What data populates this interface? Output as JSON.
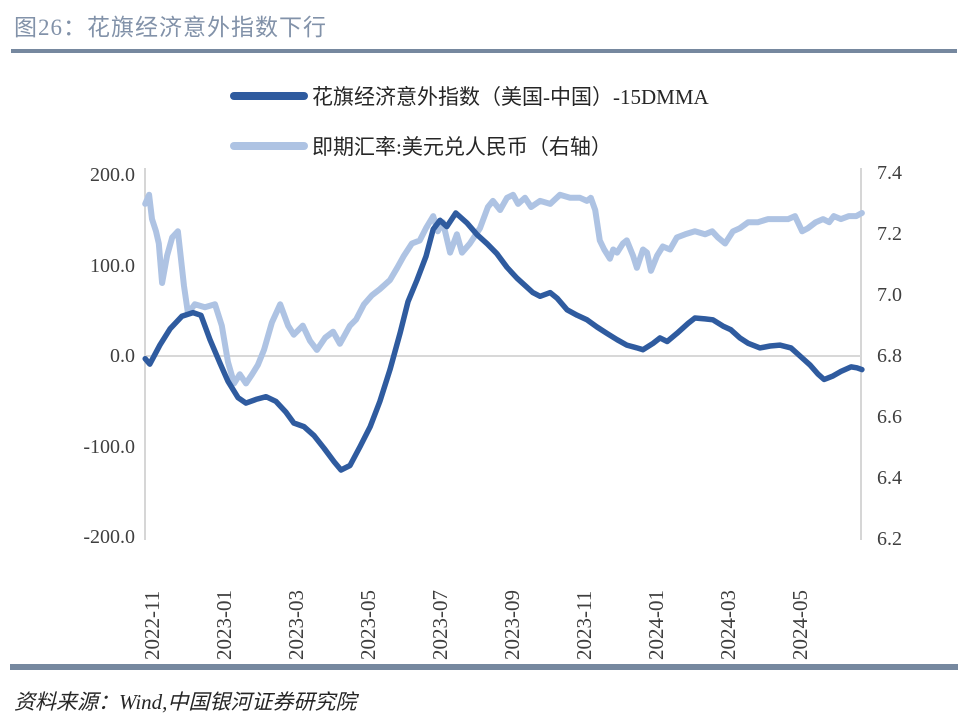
{
  "figure": {
    "title": "图26：花旗经济意外指数下行",
    "source": "资料来源：Wind,中国银河证券研究院"
  },
  "colors": {
    "title_text": "#8292A9",
    "rule": "#76889F",
    "axis_text": "#3F3F3F",
    "axis_line": "#C9C9C9",
    "zero_gridline": "#D8D8D8",
    "series_dark": "#2F5B9F",
    "series_light": "#AEC3E3"
  },
  "chart_data": {
    "type": "line",
    "title": "图26：花旗经济意外指数下行",
    "x_unit": "months since 2022-11",
    "grid": "zero-line-only",
    "legend_position": "top-center",
    "left_axis": {
      "range": [
        -200,
        200
      ],
      "ticks": [
        {
          "label": "200.0",
          "v": 200
        },
        {
          "label": "100.0",
          "v": 100
        },
        {
          "label": "0.0",
          "v": 0
        },
        {
          "label": "-100.0",
          "v": -100
        },
        {
          "label": "-200.0",
          "v": -200
        }
      ]
    },
    "right_axis": {
      "range": [
        6.2,
        7.4
      ],
      "ticks": [
        {
          "label": "7.4",
          "v": 7.4
        },
        {
          "label": "7.2",
          "v": 7.2
        },
        {
          "label": "7.0",
          "v": 7.0
        },
        {
          "label": "6.8",
          "v": 6.8
        },
        {
          "label": "6.6",
          "v": 6.6
        },
        {
          "label": "6.4",
          "v": 6.4
        },
        {
          "label": "6.2",
          "v": 6.2
        }
      ]
    },
    "x_axis": {
      "ticks": [
        {
          "label": "2022-11",
          "t": 0
        },
        {
          "label": "2023-01",
          "t": 2
        },
        {
          "label": "2023-03",
          "t": 4
        },
        {
          "label": "2023-05",
          "t": 6
        },
        {
          "label": "2023-07",
          "t": 8
        },
        {
          "label": "2023-09",
          "t": 10
        },
        {
          "label": "2023-11",
          "t": 12
        },
        {
          "label": "2024-01",
          "t": 14
        },
        {
          "label": "2024-03",
          "t": 16
        },
        {
          "label": "2024-05",
          "t": 18
        }
      ]
    },
    "series": [
      {
        "name": "花旗经济意外指数（美国-中国）-15DMMA",
        "axis": "left",
        "color": "#2F5B9F",
        "points": [
          [
            -0.19,
            -3
          ],
          [
            -0.06,
            -9
          ],
          [
            0.22,
            12
          ],
          [
            0.5,
            30
          ],
          [
            0.83,
            44
          ],
          [
            1.14,
            48
          ],
          [
            1.36,
            45
          ],
          [
            1.61,
            18
          ],
          [
            1.89,
            -8
          ],
          [
            2.11,
            -28
          ],
          [
            2.39,
            -46
          ],
          [
            2.61,
            -52
          ],
          [
            2.89,
            -48
          ],
          [
            3.17,
            -45
          ],
          [
            3.44,
            -50
          ],
          [
            3.72,
            -62
          ],
          [
            3.94,
            -74
          ],
          [
            4.22,
            -78
          ],
          [
            4.5,
            -88
          ],
          [
            4.78,
            -102
          ],
          [
            5.06,
            -117
          ],
          [
            5.25,
            -126
          ],
          [
            5.5,
            -121
          ],
          [
            5.78,
            -100
          ],
          [
            6.06,
            -78
          ],
          [
            6.33,
            -50
          ],
          [
            6.61,
            -15
          ],
          [
            6.89,
            25
          ],
          [
            7.11,
            60
          ],
          [
            7.36,
            84
          ],
          [
            7.61,
            110
          ],
          [
            7.81,
            140
          ],
          [
            8.0,
            150
          ],
          [
            8.19,
            143
          ],
          [
            8.44,
            158
          ],
          [
            8.75,
            147
          ],
          [
            9.03,
            134
          ],
          [
            9.31,
            124
          ],
          [
            9.58,
            113
          ],
          [
            9.86,
            98
          ],
          [
            10.14,
            86
          ],
          [
            10.36,
            78
          ],
          [
            10.58,
            70
          ],
          [
            10.78,
            66
          ],
          [
            11.06,
            70
          ],
          [
            11.25,
            64
          ],
          [
            11.53,
            51
          ],
          [
            11.81,
            45
          ],
          [
            12.08,
            40
          ],
          [
            12.36,
            32
          ],
          [
            12.64,
            25
          ],
          [
            12.92,
            18
          ],
          [
            13.19,
            12
          ],
          [
            13.47,
            9
          ],
          [
            13.64,
            7
          ],
          [
            13.92,
            14
          ],
          [
            14.11,
            20
          ],
          [
            14.31,
            16
          ],
          [
            14.58,
            25
          ],
          [
            14.89,
            36
          ],
          [
            15.08,
            42
          ],
          [
            15.36,
            41
          ],
          [
            15.58,
            40
          ],
          [
            15.86,
            33
          ],
          [
            16.08,
            29
          ],
          [
            16.33,
            20
          ],
          [
            16.56,
            14
          ],
          [
            16.89,
            9
          ],
          [
            17.17,
            11
          ],
          [
            17.44,
            12
          ],
          [
            17.75,
            9
          ],
          [
            18.0,
            0
          ],
          [
            18.28,
            -10
          ],
          [
            18.5,
            -20
          ],
          [
            18.67,
            -26
          ],
          [
            18.92,
            -22
          ],
          [
            19.14,
            -17
          ],
          [
            19.42,
            -12
          ],
          [
            19.58,
            -13
          ],
          [
            19.72,
            -15
          ]
        ]
      },
      {
        "name": "即期汇率:美元兑人民币（右轴）",
        "axis": "right",
        "color": "#AEC3E3",
        "points": [
          [
            -0.19,
            7.3
          ],
          [
            -0.08,
            7.33
          ],
          [
            0,
            7.25
          ],
          [
            0.11,
            7.21
          ],
          [
            0.19,
            7.17
          ],
          [
            0.28,
            7.04
          ],
          [
            0.42,
            7.13
          ],
          [
            0.56,
            7.19
          ],
          [
            0.72,
            7.21
          ],
          [
            0.89,
            7.03
          ],
          [
            1.0,
            6.94
          ],
          [
            1.19,
            6.97
          ],
          [
            1.47,
            6.96
          ],
          [
            1.75,
            6.97
          ],
          [
            1.94,
            6.9
          ],
          [
            2.11,
            6.78
          ],
          [
            2.28,
            6.71
          ],
          [
            2.44,
            6.74
          ],
          [
            2.61,
            6.71
          ],
          [
            2.78,
            6.74
          ],
          [
            2.94,
            6.77
          ],
          [
            3.11,
            6.82
          ],
          [
            3.33,
            6.91
          ],
          [
            3.56,
            6.97
          ],
          [
            3.78,
            6.9
          ],
          [
            3.94,
            6.87
          ],
          [
            4.19,
            6.9
          ],
          [
            4.39,
            6.85
          ],
          [
            4.58,
            6.82
          ],
          [
            4.81,
            6.86
          ],
          [
            5.03,
            6.88
          ],
          [
            5.22,
            6.84
          ],
          [
            5.5,
            6.9
          ],
          [
            5.67,
            6.92
          ],
          [
            5.89,
            6.97
          ],
          [
            6.11,
            7.0
          ],
          [
            6.33,
            7.02
          ],
          [
            6.61,
            7.05
          ],
          [
            6.81,
            7.09
          ],
          [
            7.0,
            7.13
          ],
          [
            7.22,
            7.17
          ],
          [
            7.44,
            7.18
          ],
          [
            7.61,
            7.22
          ],
          [
            7.81,
            7.26
          ],
          [
            7.94,
            7.21
          ],
          [
            8.08,
            7.24
          ],
          [
            8.28,
            7.14
          ],
          [
            8.47,
            7.2
          ],
          [
            8.61,
            7.14
          ],
          [
            8.83,
            7.17
          ],
          [
            9.11,
            7.22
          ],
          [
            9.33,
            7.29
          ],
          [
            9.47,
            7.31
          ],
          [
            9.67,
            7.28
          ],
          [
            9.86,
            7.32
          ],
          [
            10.03,
            7.33
          ],
          [
            10.17,
            7.3
          ],
          [
            10.36,
            7.32
          ],
          [
            10.53,
            7.29
          ],
          [
            10.78,
            7.31
          ],
          [
            11.06,
            7.3
          ],
          [
            11.33,
            7.33
          ],
          [
            11.61,
            7.32
          ],
          [
            11.89,
            7.32
          ],
          [
            12.08,
            7.31
          ],
          [
            12.19,
            7.32
          ],
          [
            12.31,
            7.28
          ],
          [
            12.44,
            7.18
          ],
          [
            12.56,
            7.15
          ],
          [
            12.72,
            7.12
          ],
          [
            12.81,
            7.15
          ],
          [
            12.92,
            7.14
          ],
          [
            13.08,
            7.17
          ],
          [
            13.19,
            7.18
          ],
          [
            13.36,
            7.13
          ],
          [
            13.47,
            7.09
          ],
          [
            13.64,
            7.15
          ],
          [
            13.75,
            7.14
          ],
          [
            13.86,
            7.08
          ],
          [
            14.03,
            7.13
          ],
          [
            14.19,
            7.16
          ],
          [
            14.39,
            7.15
          ],
          [
            14.58,
            7.19
          ],
          [
            14.81,
            7.2
          ],
          [
            15.08,
            7.21
          ],
          [
            15.36,
            7.2
          ],
          [
            15.56,
            7.21
          ],
          [
            15.72,
            7.19
          ],
          [
            15.92,
            7.17
          ],
          [
            16.14,
            7.21
          ],
          [
            16.33,
            7.22
          ],
          [
            16.56,
            7.24
          ],
          [
            16.83,
            7.24
          ],
          [
            17.11,
            7.25
          ],
          [
            17.39,
            7.25
          ],
          [
            17.67,
            7.25
          ],
          [
            17.86,
            7.26
          ],
          [
            18.06,
            7.21
          ],
          [
            18.22,
            7.22
          ],
          [
            18.44,
            7.24
          ],
          [
            18.64,
            7.25
          ],
          [
            18.81,
            7.24
          ],
          [
            18.94,
            7.26
          ],
          [
            19.14,
            7.25
          ],
          [
            19.36,
            7.26
          ],
          [
            19.56,
            7.26
          ],
          [
            19.72,
            7.27
          ]
        ]
      }
    ]
  }
}
